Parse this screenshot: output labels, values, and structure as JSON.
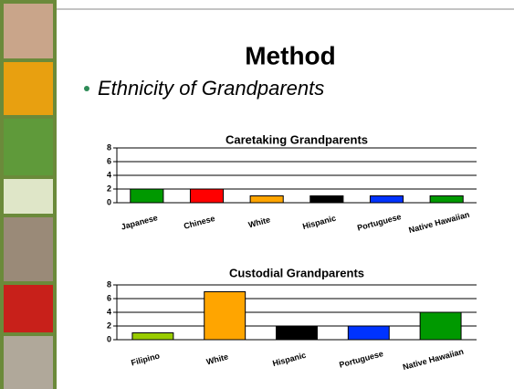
{
  "header": {
    "title": "Method",
    "bullet": "Ethnicity of Grandparents"
  },
  "chart_data": [
    {
      "type": "bar",
      "title": "Caretaking Grandparents",
      "categories": [
        "Japanese",
        "Chinese",
        "White",
        "Hispanic",
        "Portuguese",
        "Native Hawaiian"
      ],
      "values": [
        2,
        2,
        1,
        1,
        1,
        1
      ],
      "colors": [
        "#009900",
        "#ff0000",
        "#ffa500",
        "#000000",
        "#0033ff",
        "#009900"
      ],
      "ylim": [
        0,
        8
      ],
      "yticks": [
        0,
        2,
        4,
        6,
        8
      ],
      "grid": true
    },
    {
      "type": "bar",
      "title": "Custodial Grandparents",
      "categories": [
        "Filipino",
        "White",
        "Hispanic",
        "Portuguese",
        "Native Hawaiian"
      ],
      "values": [
        1,
        7,
        2,
        2,
        4
      ],
      "colors": [
        "#99cc00",
        "#ffa500",
        "#000000",
        "#0033ff",
        "#009900"
      ],
      "ylim": [
        0,
        8
      ],
      "yticks": [
        0,
        2,
        4,
        6,
        8
      ],
      "grid": true
    }
  ]
}
